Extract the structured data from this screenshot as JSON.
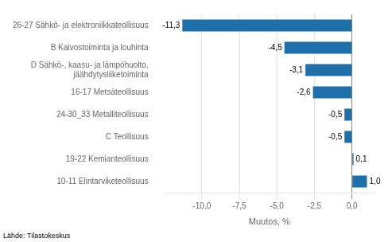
{
  "chart_data": {
    "type": "bar",
    "orientation": "horizontal",
    "categories": [
      "26-27 Sähkö- ja elektroniikkateollisuus",
      "B Kaivostoiminta ja louhinta",
      "D Sähkö-, kaasu- ja lämpöhuolto,\njäähdytysliiketoiminta",
      "16-17 Metsäteollisuus",
      "24-30_33 Metalliteollisuus",
      "C Teollisuus",
      "19-22 Kemianteollisuus",
      "10-11 Elintarviketeollisuus"
    ],
    "values": [
      -11.3,
      -4.5,
      -3.1,
      -2.6,
      -0.5,
      -0.5,
      0.1,
      1.0
    ],
    "value_labels": [
      "-11,3",
      "-4,5",
      "-3,1",
      "-2,6",
      "-0,5",
      "-0,5",
      "0,1",
      "1,0"
    ],
    "data_labels": true,
    "color": "#1F6FA8",
    "xlabel": "Muutos, %",
    "xlim": [
      -12.5,
      1.5
    ],
    "xticks": [
      {
        "value": -10.0,
        "label": "-10,0"
      },
      {
        "value": -7.5,
        "label": "-7,5"
      },
      {
        "value": -5.0,
        "label": "-5,0"
      },
      {
        "value": -2.5,
        "label": "-2,5"
      },
      {
        "value": 0.0,
        "label": "0,0"
      }
    ],
    "grid": true,
    "annotations": [
      "Lähde: Tilastokeskus"
    ]
  }
}
